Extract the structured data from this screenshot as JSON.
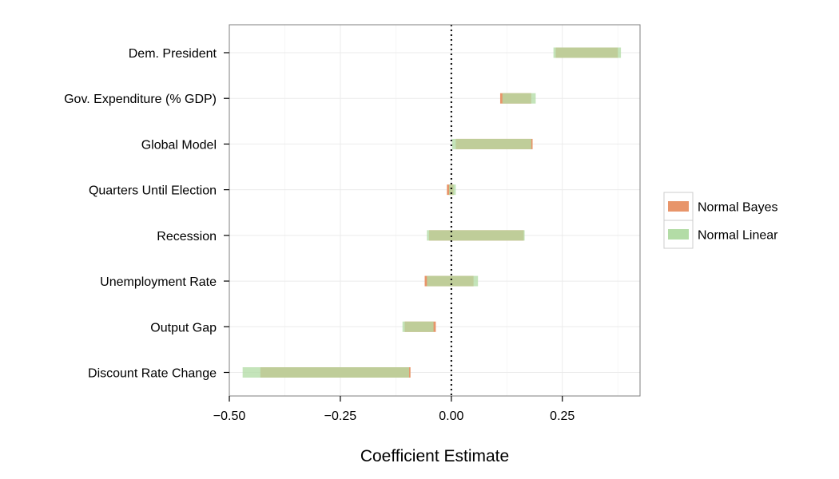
{
  "chart_data": {
    "type": "interval",
    "title": "",
    "xlabel": "Coefficient Estimate",
    "ylabel": "",
    "xlim": [
      -0.5,
      0.425
    ],
    "xticks": [
      -0.5,
      -0.25,
      0,
      0.25
    ],
    "xtick_labels": [
      "−0.50",
      "−0.25",
      "0.00",
      "0.25"
    ],
    "reference_line": 0,
    "grid": true,
    "legend_position": "right",
    "categories": [
      "Dem. President",
      "Gov. Expenditure (% GDP)",
      "Global Model",
      "Quarters Until Election",
      "Recession",
      "Unemployment Rate",
      "Output Gap",
      "Discount Rate Change"
    ],
    "series": [
      {
        "name": "Normal Bayes",
        "color": "#e8956a",
        "intervals": [
          [
            0.235,
            0.375
          ],
          [
            0.11,
            0.18
          ],
          [
            0.01,
            0.183
          ],
          [
            -0.01,
            0.005
          ],
          [
            -0.05,
            0.163
          ],
          [
            -0.06,
            0.05
          ],
          [
            -0.105,
            -0.035
          ],
          [
            -0.43,
            -0.092
          ]
        ]
      },
      {
        "name": "Normal Linear",
        "color": "#b3dca6",
        "intervals": [
          [
            0.23,
            0.382
          ],
          [
            0.115,
            0.19
          ],
          [
            0.002,
            0.18
          ],
          [
            -0.005,
            0.01
          ],
          [
            -0.055,
            0.165
          ],
          [
            -0.055,
            0.06
          ],
          [
            -0.11,
            -0.04
          ],
          [
            -0.47,
            -0.095
          ]
        ]
      }
    ]
  }
}
